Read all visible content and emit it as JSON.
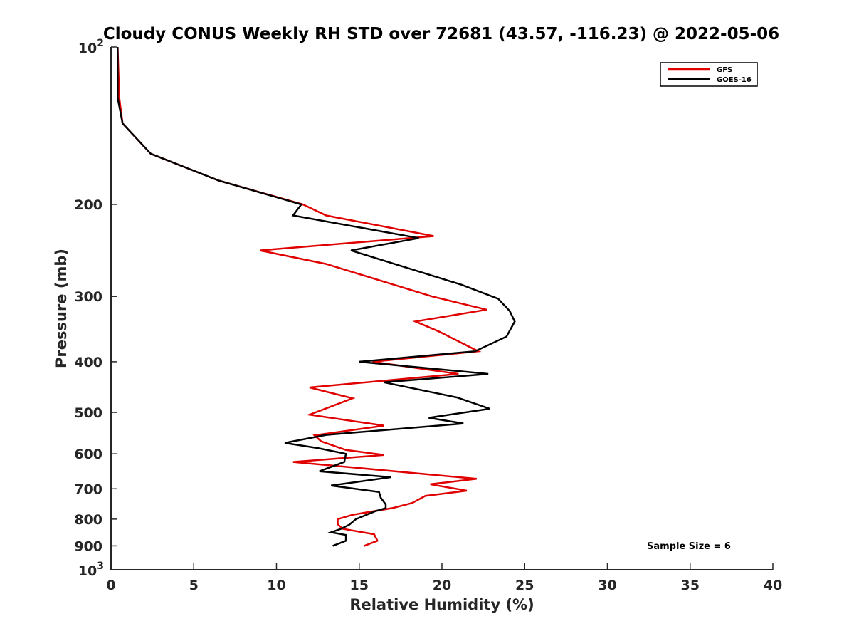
{
  "chart_data": {
    "type": "line",
    "title": "Cloudy CONUS Weekly RH STD over 72681 (43.57, -116.23) @ 2022-05-06",
    "xlabel": "Relative Humidity (%)",
    "ylabel": "Pressure (mb)",
    "xlim": [
      0,
      40
    ],
    "ylim": [
      100,
      1000
    ],
    "y_scale": "log",
    "y_reversed": true,
    "grid": false,
    "legend_position": "top-right",
    "x_ticks": [
      0,
      5,
      10,
      15,
      20,
      25,
      30,
      35,
      40
    ],
    "x_tick_labels": [
      "0",
      "5",
      "10",
      "15",
      "20",
      "25",
      "30",
      "35",
      "40"
    ],
    "y_ticks": [
      200,
      300,
      400,
      500,
      600,
      700,
      800,
      900
    ],
    "y_tick_labels": [
      "200",
      "300",
      "400",
      "500",
      "600",
      "700",
      "800",
      "900"
    ],
    "y_decade_ticks": [
      {
        "value": 100,
        "base": "10",
        "exp": "2"
      },
      {
        "value": 1000,
        "base": "10",
        "exp": "3"
      }
    ],
    "annotation": "Sample Size = 6",
    "series": [
      {
        "name": "GFS",
        "color": "#e00000",
        "points": [
          [
            0.4,
            100
          ],
          [
            0.5,
            125
          ],
          [
            0.7,
            140
          ],
          [
            2.4,
            160
          ],
          [
            6.5,
            180
          ],
          [
            11.6,
            200
          ],
          [
            13.0,
            210
          ],
          [
            19.5,
            230
          ],
          [
            9.0,
            245
          ],
          [
            13.0,
            260
          ],
          [
            19.4,
            300
          ],
          [
            22.7,
            318
          ],
          [
            18.4,
            335
          ],
          [
            19.8,
            350
          ],
          [
            22.2,
            382
          ],
          [
            15.8,
            400
          ],
          [
            21.0,
            422
          ],
          [
            12.0,
            448
          ],
          [
            14.6,
            470
          ],
          [
            12.0,
            505
          ],
          [
            16.5,
            530
          ],
          [
            12.3,
            553
          ],
          [
            12.7,
            568
          ],
          [
            14.2,
            590
          ],
          [
            16.5,
            603
          ],
          [
            11.0,
            622
          ],
          [
            22.1,
            670
          ],
          [
            19.3,
            686
          ],
          [
            21.5,
            706
          ],
          [
            19.0,
            722
          ],
          [
            18.2,
            745
          ],
          [
            17.0,
            762
          ],
          [
            14.6,
            785
          ],
          [
            13.7,
            800
          ],
          [
            13.7,
            818
          ],
          [
            14.0,
            835
          ],
          [
            15.9,
            855
          ],
          [
            16.1,
            880
          ],
          [
            15.3,
            900
          ]
        ]
      },
      {
        "name": "GOES-16",
        "color": "#000000",
        "points": [
          [
            0.4,
            100
          ],
          [
            0.4,
            125
          ],
          [
            0.7,
            140
          ],
          [
            2.4,
            160
          ],
          [
            6.5,
            180
          ],
          [
            11.5,
            200
          ],
          [
            11.0,
            210
          ],
          [
            18.6,
            232
          ],
          [
            14.5,
            245
          ],
          [
            21.2,
            285
          ],
          [
            23.4,
            303
          ],
          [
            24.1,
            320
          ],
          [
            24.4,
            335
          ],
          [
            23.9,
            358
          ],
          [
            22.0,
            382
          ],
          [
            15.0,
            400
          ],
          [
            22.8,
            422
          ],
          [
            16.5,
            438
          ],
          [
            20.9,
            468
          ],
          [
            22.9,
            492
          ],
          [
            19.2,
            512
          ],
          [
            21.3,
            525
          ],
          [
            13.0,
            552
          ],
          [
            10.5,
            572
          ],
          [
            12.5,
            585
          ],
          [
            14.2,
            600
          ],
          [
            14.1,
            622
          ],
          [
            12.6,
            648
          ],
          [
            16.9,
            665
          ],
          [
            13.3,
            690
          ],
          [
            16.2,
            710
          ],
          [
            16.3,
            728
          ],
          [
            16.6,
            750
          ],
          [
            16.6,
            762
          ],
          [
            16.0,
            772
          ],
          [
            14.8,
            800
          ],
          [
            14.4,
            820
          ],
          [
            13.9,
            835
          ],
          [
            13.3,
            848
          ],
          [
            14.2,
            858
          ],
          [
            14.2,
            880
          ],
          [
            13.4,
            900
          ]
        ]
      }
    ]
  }
}
